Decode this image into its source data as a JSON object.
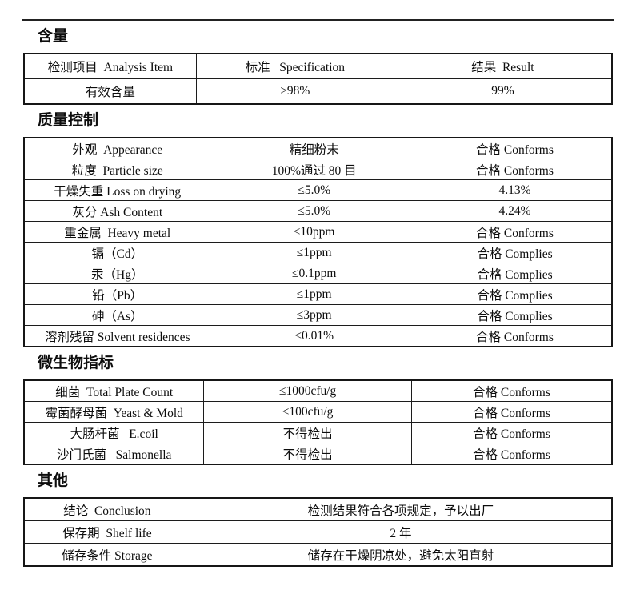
{
  "page": {
    "background": "#ffffff",
    "text_color": "#0d0d0d",
    "border_color": "#1c1c1c"
  },
  "sections": [
    {
      "id": "content",
      "heading": "含量",
      "header_row": [
        "检测项目  Analysis Item",
        "标准   Specification",
        "结果  Result"
      ],
      "rows": [
        [
          "有效含量",
          "≥98%",
          "99%"
        ]
      ]
    },
    {
      "id": "quality-control",
      "heading": "质量控制",
      "rows": [
        [
          "外观  Appearance",
          "精细粉末",
          "合格 Conforms"
        ],
        [
          "粒度  Particle size",
          "100%通过 80 目",
          "合格 Conforms"
        ],
        [
          "干燥失重 Loss on drying",
          "≤5.0%",
          "4.13%"
        ],
        [
          "灰分 Ash Content",
          "≤5.0%",
          "4.24%"
        ],
        [
          "重金属  Heavy metal",
          "≤10ppm",
          "合格 Conforms"
        ],
        [
          "镉（Cd）",
          "≤1ppm",
          "合格 Complies"
        ],
        [
          "汞（Hg）",
          "≤0.1ppm",
          "合格 Complies"
        ],
        [
          "铅（Pb）",
          "≤1ppm",
          "合格 Complies"
        ],
        [
          "砷（As）",
          "≤3ppm",
          "合格 Complies"
        ],
        [
          "溶剂残留 Solvent residences",
          "≤0.01%",
          "合格 Conforms"
        ]
      ]
    },
    {
      "id": "microbiological",
      "heading": "微生物指标",
      "rows": [
        [
          "细菌  Total Plate Count",
          "≤1000cfu/g",
          "合格 Conforms"
        ],
        [
          "霉菌酵母菌  Yeast & Mold",
          "≤100cfu/g",
          "合格 Conforms"
        ],
        [
          "大肠杆菌   E.coil",
          "不得检出",
          "合格 Conforms"
        ],
        [
          "沙门氏菌   Salmonella",
          "不得检出",
          "合格 Conforms"
        ]
      ]
    },
    {
      "id": "other",
      "heading": "其他",
      "rows": [
        [
          "结论  Conclusion",
          "检测结果符合各项规定，予以出厂"
        ],
        [
          "保存期  Shelf life",
          "2 年"
        ],
        [
          "储存条件 Storage",
          "储存在干燥阴凉处，避免太阳直射"
        ]
      ]
    }
  ]
}
